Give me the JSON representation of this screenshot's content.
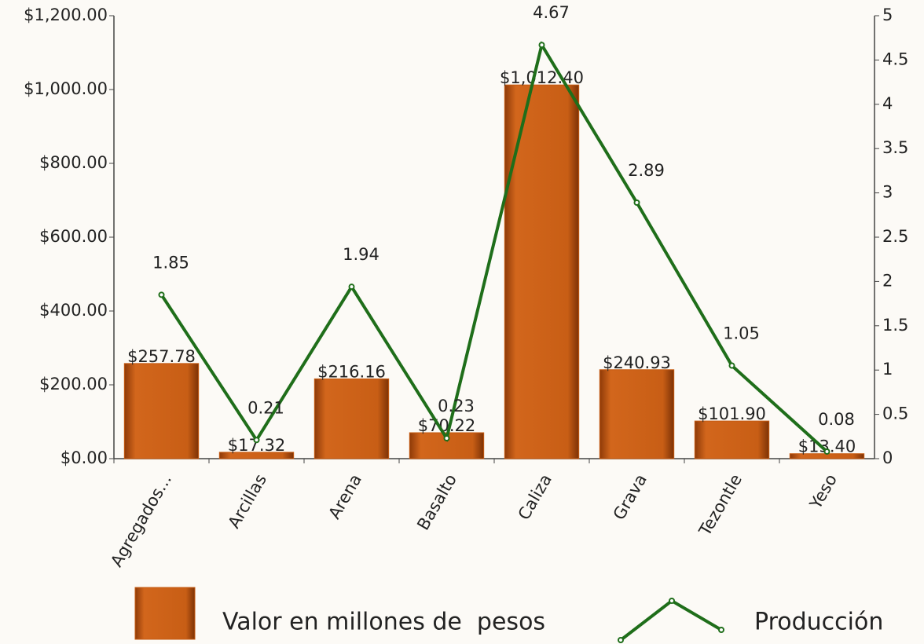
{
  "chart_data": {
    "type": "bar",
    "categories": [
      "Agregados...",
      "Arcillas",
      "Arena",
      "Basalto",
      "Caliza",
      "Grava",
      "Tezontle",
      "Yeso"
    ],
    "series": [
      {
        "name": "Valor en millones de  pesos",
        "type": "bar",
        "color": "#c55a11",
        "values": [
          257.78,
          17.32,
          216.16,
          70.22,
          1012.4,
          240.93,
          101.9,
          13.4
        ],
        "value_labels": [
          "$257.78",
          "$17.32",
          "$216.16",
          "$70.22",
          "$1,012.40",
          "$240.93",
          "$101.90",
          "$13.40"
        ]
      },
      {
        "name": "Producción",
        "type": "line",
        "axis": "y2",
        "color": "#1f6e1a",
        "values": [
          1.85,
          0.21,
          1.94,
          0.23,
          4.67,
          2.89,
          1.05,
          0.08
        ]
      }
    ],
    "ylim": [
      0,
      1200
    ],
    "yticks": [
      {
        "value": 0,
        "label": "$0.00"
      },
      {
        "value": 200,
        "label": "$200.00"
      },
      {
        "value": 400,
        "label": "$400.00"
      },
      {
        "value": 600,
        "label": "$600.00"
      },
      {
        "value": 800,
        "label": "$800.00"
      },
      {
        "value": 1000,
        "label": "$1,000.00"
      },
      {
        "value": 1200,
        "label": "$1,200.00"
      }
    ],
    "y2lim": [
      0,
      5
    ],
    "y2ticks": [
      0,
      0.5,
      1,
      1.5,
      2,
      2.5,
      3,
      3.5,
      4,
      4.5,
      5
    ]
  }
}
